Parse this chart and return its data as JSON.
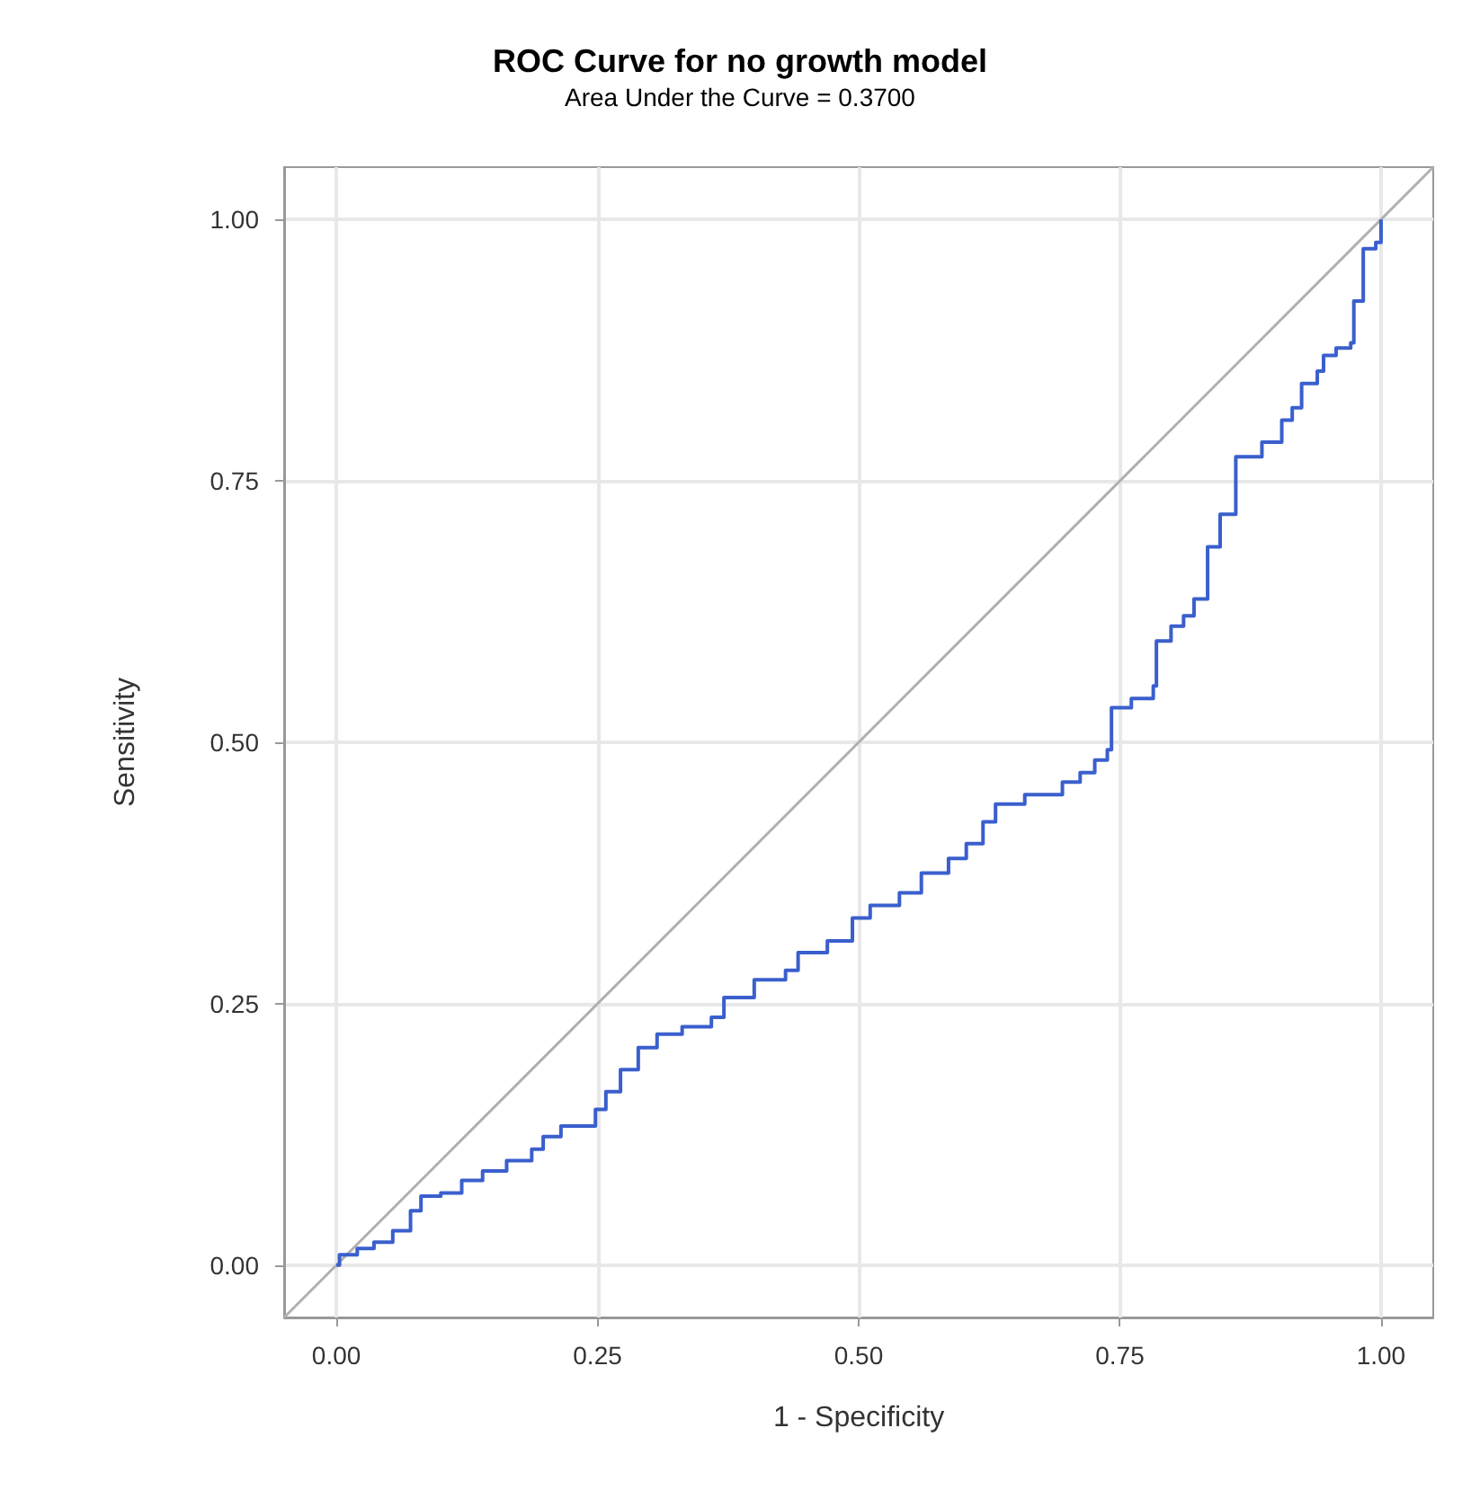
{
  "chart_data": {
    "type": "step",
    "title": "ROC Curve for no growth model",
    "subtitle": "Area Under the Curve = 0.3700",
    "xlabel": "1 - Specificity",
    "ylabel": "Sensitivity",
    "xlim": [
      -0.05,
      1.05
    ],
    "ylim": [
      -0.05,
      1.05
    ],
    "xticks": [
      {
        "value": 0,
        "label": "0.00"
      },
      {
        "value": 0.25,
        "label": "0.25"
      },
      {
        "value": 0.5,
        "label": "0.50"
      },
      {
        "value": 0.75,
        "label": "0.75"
      },
      {
        "value": 1,
        "label": "1.00"
      }
    ],
    "yticks": [
      {
        "value": 0,
        "label": "0.00"
      },
      {
        "value": 0.25,
        "label": "0.25"
      },
      {
        "value": 0.5,
        "label": "0.50"
      },
      {
        "value": 0.75,
        "label": "0.75"
      },
      {
        "value": 1,
        "label": "1.00"
      }
    ],
    "grid": true,
    "line_style": "solid",
    "marker": "none",
    "series": [
      {
        "color": "#3a5fcd",
        "x": [
          0,
          0.003,
          0.02,
          0.036,
          0.054,
          0.071,
          0.081,
          0.1,
          0.12,
          0.14,
          0.163,
          0.187,
          0.198,
          0.215,
          0.248,
          0.258,
          0.272,
          0.289,
          0.307,
          0.331,
          0.359,
          0.371,
          0.4,
          0.43,
          0.442,
          0.47,
          0.494,
          0.511,
          0.539,
          0.56,
          0.586,
          0.603,
          0.619,
          0.631,
          0.659,
          0.695,
          0.712,
          0.726,
          0.738,
          0.742,
          0.761,
          0.782,
          0.785,
          0.799,
          0.811,
          0.821,
          0.834,
          0.846,
          0.861,
          0.886,
          0.905,
          0.915,
          0.924,
          0.939,
          0.945,
          0.957,
          0.971,
          0.974,
          0.983,
          0.995,
          1.0
        ],
        "values": [
          0,
          0.01,
          0.016,
          0.022,
          0.033,
          0.052,
          0.066,
          0.069,
          0.081,
          0.09,
          0.1,
          0.111,
          0.123,
          0.133,
          0.149,
          0.166,
          0.187,
          0.208,
          0.221,
          0.228,
          0.237,
          0.256,
          0.273,
          0.282,
          0.299,
          0.31,
          0.332,
          0.344,
          0.356,
          0.375,
          0.389,
          0.403,
          0.424,
          0.441,
          0.45,
          0.462,
          0.471,
          0.483,
          0.493,
          0.533,
          0.542,
          0.554,
          0.597,
          0.611,
          0.621,
          0.637,
          0.687,
          0.718,
          0.773,
          0.787,
          0.808,
          0.82,
          0.843,
          0.855,
          0.87,
          0.877,
          0.882,
          0.922,
          0.972,
          0.978,
          1.0
        ]
      },
      {
        "type": "line",
        "color": "#b0b0b0",
        "x": [
          -0.05,
          1.05
        ],
        "values": [
          -0.05,
          1.05
        ]
      }
    ]
  }
}
